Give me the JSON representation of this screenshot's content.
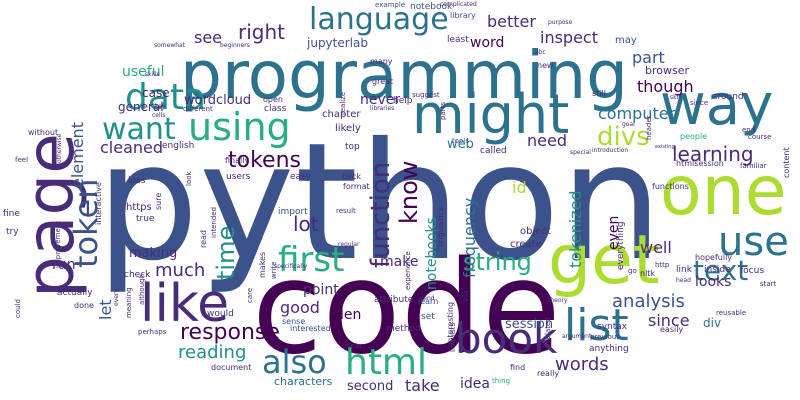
{
  "palette": {
    "dark_purple": "#440154",
    "indigo": "#472c7a",
    "slate_blue": "#3b528b",
    "steel_blue": "#2c728e",
    "teal": "#21918c",
    "sea_green": "#28ae80",
    "green": "#5ec962",
    "lime": "#addc30",
    "yellow": "#fde725"
  },
  "words": {
    "python": "python",
    "code": "code",
    "programming": "programming",
    "page": "page",
    "one": "one",
    "get": "get",
    "might": "might",
    "way": "way",
    "like": "like",
    "book": "book",
    "language": "language",
    "data": "data",
    "using": "using",
    "want": "want",
    "token": "token",
    "list": "list",
    "use": "use",
    "html": "html",
    "text": "text",
    "first": "first",
    "also": "also",
    "function": "function",
    "know": "know",
    "response": "response",
    "string": "string",
    "time": "time",
    "right": "right",
    "learning": "learning",
    "tokens": "tokens",
    "divs": "divs",
    "words": "words",
    "analysis": "analysis",
    "element": "element",
    "let": "let",
    "much": "much",
    "lot": "lot",
    "cleaned": "cleaned",
    "reading": "reading",
    "computer": "computer",
    "see": "see",
    "better": "better",
    "inspect": "inspect",
    "word": "word",
    "part": "part",
    "jupyterlab": "jupyterlab",
    "useful": "useful",
    "case": "case",
    "general": "general",
    "wordcloud": "wordcloud",
    "never": "never",
    "need": "need",
    "though": "though",
    "looks": "looks",
    "well": "well",
    "even": "even",
    "id": "id",
    "tokenized": "tokenized",
    "frequency": "frequency",
    "notebooks": "notebooks",
    "make": "make",
    "point": "point",
    "len": "len",
    "good": "good",
    "making": "making",
    "run": "run",
    "since": "since",
    "session": "session",
    "div": "div",
    "take": "take",
    "idea": "idea",
    "second": "second",
    "characters": "characters",
    "web": "web",
    "notebook": "notebook",
    "example": "example",
    "complicated": "complicated",
    "library": "library",
    "least": "least",
    "may": "may",
    "browser": "browser",
    "around": "around",
    "english": "english",
    "chapter": "chapter",
    "likely": "likely",
    "top": "top",
    "called": "called",
    "object": "object",
    "create": "create",
    "tools": "tools",
    "interactive": "interactive",
    "less": "less",
    "https": "https",
    "true": "true",
    "sure": "sure",
    "users": "users",
    "easy": "easy",
    "format": "format",
    "import": "import",
    "result": "result",
    "help": "help",
    "set": "set",
    "learn": "learn",
    "interested": "interested",
    "sense": "sense",
    "clear": "clear",
    "document": "document",
    "find": "find",
    "thing": "thing",
    "really": "really",
    "anything": "anything",
    "everything": "everything",
    "link": "link",
    "inside": "inside",
    "focus": "focus",
    "hopefully": "hopefully",
    "nltk": "nltk",
    "http": "http",
    "go": "go",
    "head": "head",
    "reusable": "reusable",
    "easily": "easily",
    "syntax": "syntax",
    "previous": "previous",
    "functions": "functions",
    "familiar": "familiar",
    "course": "course",
    "content": "content",
    "htmlsession": "htmlsession",
    "people": "people",
    "header": "header",
    "end": "end",
    "start": "start",
    "still": "still",
    "since_small": "since",
    "skill": "skill",
    "goal": "goal",
    "introduction": "introduction",
    "special": "special",
    "existing": "existing",
    "abc": "abc",
    "new": "new",
    "purpose": "purpose",
    "suggest": "suggest",
    "parts": "parts",
    "linguistics": "linguistics",
    "experience": "experience",
    "interesting": "interesting",
    "via": "via",
    "attribute": "attribute",
    "method": "method",
    "write": "write",
    "care": "care",
    "makes": "makes",
    "would": "would",
    "intended": "intended",
    "look": "look",
    "finally": "finally",
    "read": "read",
    "check": "check",
    "although": "although",
    "meaning": "meaning",
    "every": "every",
    "perhaps": "perhaps",
    "actually": "actually",
    "done": "done",
    "improvement": "improvement",
    "could": "could",
    "fine": "fine",
    "try": "try",
    "feel": "feel",
    "without": "without",
    "otherwise": "otherwise",
    "open": "open",
    "class": "class",
    "beginners": "beginners",
    "somewhat": "somewhat",
    "skills": "skills",
    "key": "key",
    "cells": "cells",
    "many": "many",
    "realize": "realize",
    "great": "great",
    "libraries": "libraries",
    "back": "back",
    "cend": "cend",
    "linguists": "linguists",
    "regular": "regular",
    "specifically": "specifically",
    "related": "related",
    "theory": "theory",
    "argument": "argument",
    "different": "different"
  }
}
